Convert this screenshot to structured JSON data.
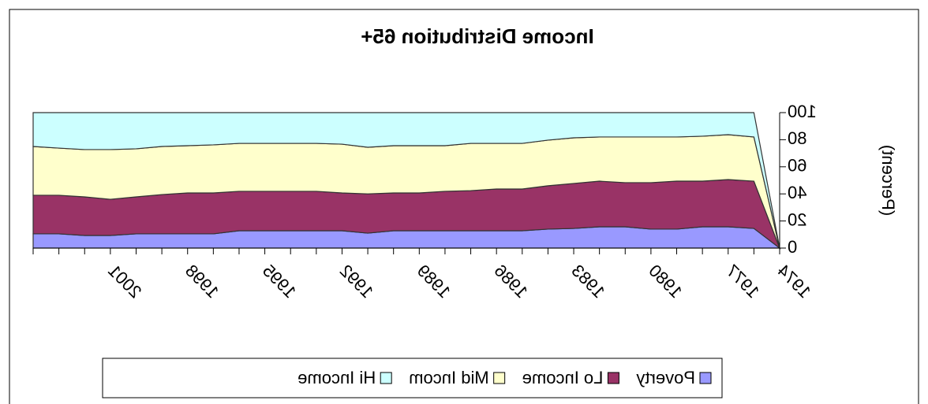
{
  "chart_data": {
    "type": "stacked_area",
    "title": "Income Distribution 65+",
    "y_label": "(Percent)",
    "categories": [
      "1974",
      null,
      "1977",
      null,
      null,
      "1980",
      null,
      null,
      "1983",
      null,
      null,
      "1986",
      null,
      null,
      "1989",
      null,
      null,
      "1992",
      null,
      null,
      "1995",
      null,
      null,
      "1998",
      null,
      null,
      "2001",
      null,
      null,
      null
    ],
    "series": [
      {
        "name": "Poverty",
        "color": "#9999ff",
        "values": [
          0,
          14.5,
          15.7,
          15.7,
          14,
          14,
          15.7,
          15.7,
          14.5,
          14,
          12.8,
          12.8,
          12.8,
          12.8,
          12.8,
          12.8,
          11,
          12.8,
          12.8,
          12.8,
          12.8,
          12.8,
          10.5,
          10.5,
          10.5,
          10.5,
          9.3,
          9.3,
          10.5,
          10.5
        ]
      },
      {
        "name": "Lo Income",
        "color": "#993366",
        "values": [
          0,
          34.9,
          34.9,
          33.7,
          35.4,
          34.3,
          32.6,
          33.7,
          33.2,
          32,
          30.8,
          30.8,
          29.6,
          29.1,
          27.9,
          27.9,
          29,
          27.9,
          29.1,
          29.1,
          29.1,
          29.1,
          30.2,
          30.2,
          29,
          27.3,
          26.7,
          28.5,
          28.5,
          28.5
        ]
      },
      {
        "name": "Mid Incom",
        "color": "#ffffcc",
        "values": [
          0,
          32.6,
          33.1,
          33.2,
          32.6,
          33.7,
          33.7,
          32.6,
          33.7,
          33.7,
          33.7,
          33.7,
          34.9,
          33.7,
          34.9,
          34.9,
          34.4,
          36,
          35.4,
          35.4,
          35.4,
          35.4,
          35.5,
          34.9,
          35.5,
          35.5,
          36.7,
          34.9,
          34.8,
          36
        ]
      },
      {
        "name": "Hi Income",
        "color": "#ccffff",
        "values": [
          0,
          18,
          16.3,
          17.4,
          18,
          18,
          18,
          18,
          18.6,
          20.3,
          22.7,
          22.7,
          22.7,
          24.4,
          24.4,
          24.4,
          25.6,
          23.3,
          22.7,
          22.7,
          22.7,
          22.7,
          23.8,
          24.4,
          25,
          26.7,
          27.3,
          27.3,
          26.2,
          25
        ]
      }
    ],
    "ylim": [
      0,
      100
    ],
    "yticks": [
      0,
      20,
      40,
      60,
      80,
      100
    ],
    "legend": "bottom",
    "mirrored": true
  }
}
